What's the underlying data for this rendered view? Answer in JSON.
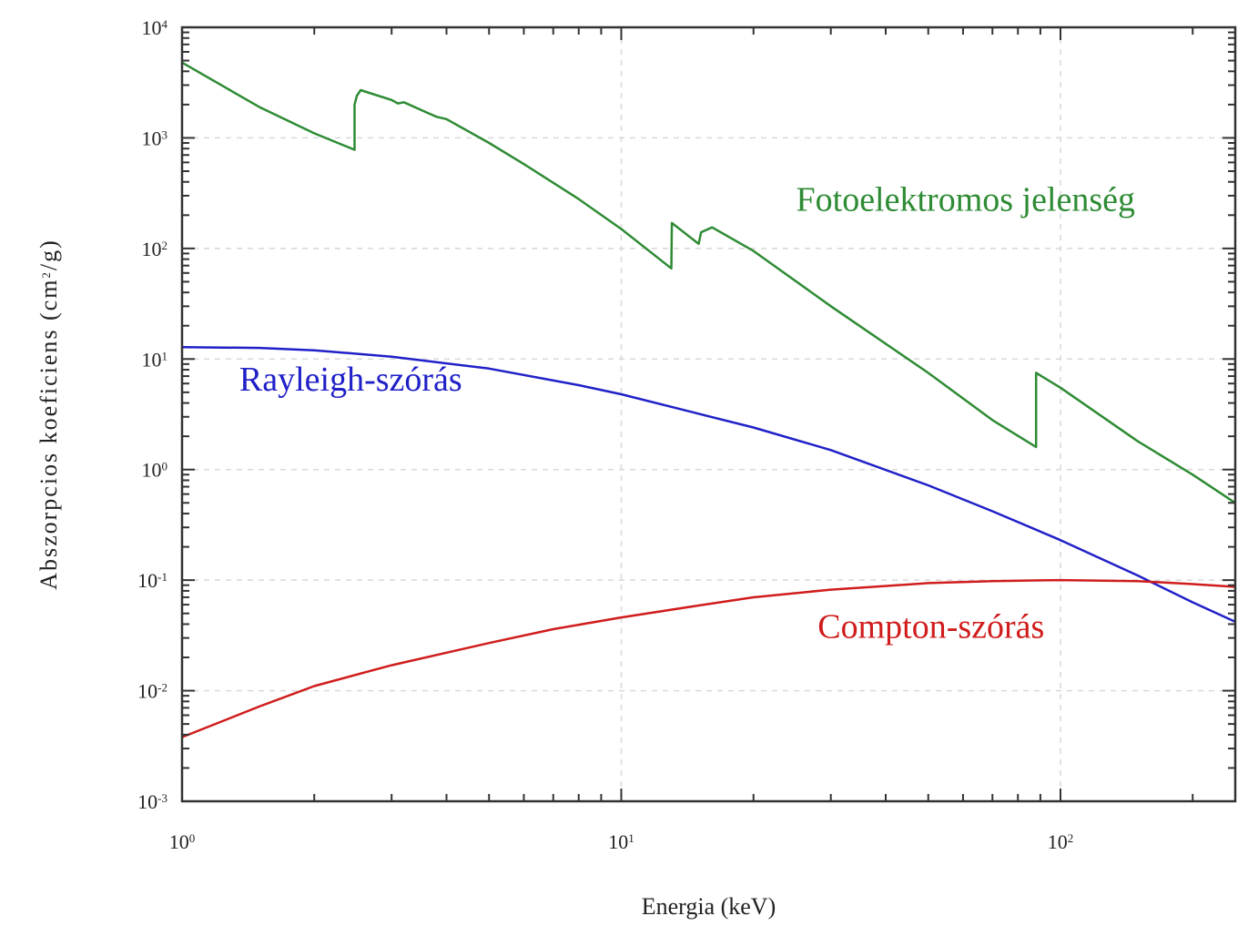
{
  "chart_data": {
    "type": "line",
    "xlabel": "Energia  (keV)",
    "ylabel_main": "Abszorpcios koeficiens (cm",
    "ylabel_sup": "2",
    "ylabel_tail": "/g)",
    "xscale": "log",
    "yscale": "log",
    "xlim": [
      1,
      250
    ],
    "ylim": [
      0.001,
      10000
    ],
    "grid": true,
    "x_ticks": [
      {
        "value": 1,
        "base": "10",
        "exp": "0"
      },
      {
        "value": 10,
        "base": "10",
        "exp": "1"
      },
      {
        "value": 100,
        "base": "10",
        "exp": "2"
      }
    ],
    "y_ticks": [
      {
        "value": 0.001,
        "base": "10",
        "exp": "-3"
      },
      {
        "value": 0.01,
        "base": "10",
        "exp": "-2"
      },
      {
        "value": 0.1,
        "base": "10",
        "exp": "-1"
      },
      {
        "value": 1,
        "base": "10",
        "exp": "0"
      },
      {
        "value": 10,
        "base": "10",
        "exp": "1"
      },
      {
        "value": 100,
        "base": "10",
        "exp": "2"
      },
      {
        "value": 1000,
        "base": "10",
        "exp": "3"
      },
      {
        "value": 10000,
        "base": "10",
        "exp": "4"
      }
    ],
    "series": [
      {
        "name": "Fotoelektromos jelenség",
        "color": "#2e8b34",
        "label_at": [
          25,
          220
        ],
        "points": [
          [
            1.0,
            4800
          ],
          [
            1.5,
            1900
          ],
          [
            2.0,
            1100
          ],
          [
            2.47,
            780
          ],
          [
            2.47,
            2000
          ],
          [
            2.5,
            2400
          ],
          [
            2.55,
            2700
          ],
          [
            3.0,
            2200
          ],
          [
            3.1,
            2050
          ],
          [
            3.2,
            2100
          ],
          [
            3.6,
            1700
          ],
          [
            3.8,
            1550
          ],
          [
            4.0,
            1480
          ],
          [
            5.0,
            900
          ],
          [
            6.0,
            580
          ],
          [
            8.0,
            280
          ],
          [
            10.0,
            150
          ],
          [
            13.0,
            66
          ],
          [
            13.04,
            170
          ],
          [
            15.0,
            110
          ],
          [
            15.2,
            140
          ],
          [
            16.1,
            155
          ],
          [
            20.0,
            95
          ],
          [
            30.0,
            30
          ],
          [
            50.0,
            7.5
          ],
          [
            70.0,
            2.8
          ],
          [
            88.0,
            1.6
          ],
          [
            88.0,
            7.5
          ],
          [
            100.0,
            5.5
          ],
          [
            150.0,
            1.8
          ],
          [
            200.0,
            0.9
          ],
          [
            250.0,
            0.5
          ]
        ]
      },
      {
        "name": "Rayleigh-szórás",
        "color": "#2020c8",
        "label_at": [
          1.35,
          5.2
        ],
        "points": [
          [
            1.0,
            12.8
          ],
          [
            1.5,
            12.6
          ],
          [
            2.0,
            12.0
          ],
          [
            3.0,
            10.5
          ],
          [
            5.0,
            8.2
          ],
          [
            8.0,
            5.8
          ],
          [
            10.0,
            4.8
          ],
          [
            15.0,
            3.2
          ],
          [
            20.0,
            2.4
          ],
          [
            30.0,
            1.5
          ],
          [
            50.0,
            0.72
          ],
          [
            70.0,
            0.42
          ],
          [
            100.0,
            0.23
          ],
          [
            150.0,
            0.11
          ],
          [
            200.0,
            0.063
          ],
          [
            250.0,
            0.042
          ]
        ]
      },
      {
        "name": "Compton-szórás",
        "color": "#d01c1c",
        "label_at": [
          28,
          0.03
        ],
        "points": [
          [
            1.0,
            0.0038
          ],
          [
            1.5,
            0.0072
          ],
          [
            2.0,
            0.011
          ],
          [
            3.0,
            0.017
          ],
          [
            5.0,
            0.027
          ],
          [
            7.0,
            0.036
          ],
          [
            10.0,
            0.046
          ],
          [
            15.0,
            0.059
          ],
          [
            20.0,
            0.07
          ],
          [
            30.0,
            0.082
          ],
          [
            50.0,
            0.094
          ],
          [
            70.0,
            0.098
          ],
          [
            100.0,
            0.1
          ],
          [
            150.0,
            0.098
          ],
          [
            200.0,
            0.092
          ],
          [
            250.0,
            0.087
          ]
        ]
      }
    ]
  }
}
